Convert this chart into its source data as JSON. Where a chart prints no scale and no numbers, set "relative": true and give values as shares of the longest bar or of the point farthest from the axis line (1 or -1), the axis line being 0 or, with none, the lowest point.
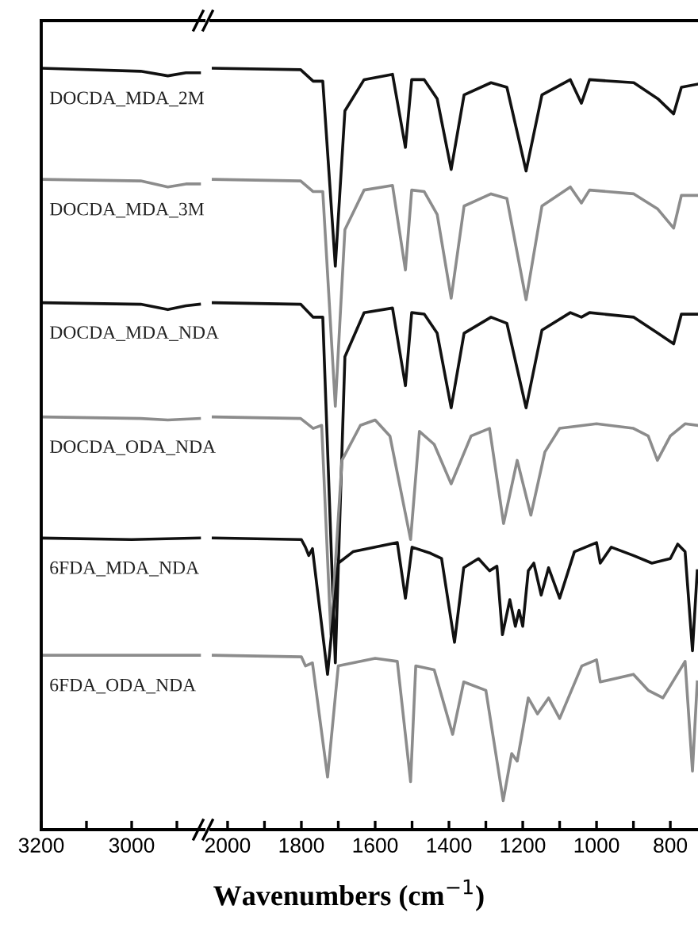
{
  "chart_data": [
    {
      "type": "line",
      "relative": true,
      "xlim": [
        3200,
        2840
      ],
      "xticks": [
        3200,
        {
          "value": 3100,
          "label": null
        },
        3000,
        {
          "value": 2900,
          "label": null
        }
      ],
      "tick_labels": "x",
      "series": [
        {
          "name": "DOCDA_MDA_2M",
          "color": "#111111",
          "x": [
            3200,
            2980,
            2920,
            2880,
            2850
          ],
          "values": [
            1.0,
            0.996,
            0.99,
            0.994,
            0.994
          ]
        },
        {
          "name": "DOCDA_MDA_3M",
          "color": "#8c8c8c",
          "x": [
            3200,
            2980,
            2920,
            2880,
            2850
          ],
          "values": [
            0.854,
            0.852,
            0.844,
            0.848,
            0.848
          ]
        },
        {
          "name": "DOCDA_MDA_NDA",
          "color": "#111111",
          "x": [
            3200,
            2980,
            2920,
            2880,
            2850
          ],
          "values": [
            0.692,
            0.69,
            0.683,
            0.688,
            0.69
          ]
        },
        {
          "name": "DOCDA_ODA_NDA",
          "color": "#8c8c8c",
          "x": [
            3200,
            2980,
            2920,
            2850
          ],
          "values": [
            0.542,
            0.54,
            0.538,
            0.54
          ]
        },
        {
          "name": "6FDA_MDA_NDA",
          "color": "#111111",
          "x": [
            3200,
            3000,
            2850
          ],
          "values": [
            0.383,
            0.381,
            0.383
          ]
        },
        {
          "name": "6FDA_ODA_NDA",
          "color": "#8c8c8c",
          "x": [
            3200,
            2850
          ],
          "values": [
            0.229,
            0.229
          ]
        }
      ]
    },
    {
      "type": "line",
      "relative": true,
      "xlim": [
        2045,
        725
      ],
      "xticks": [
        2000,
        {
          "value": 1900,
          "label": null
        },
        1800,
        {
          "value": 1700,
          "label": null
        },
        1600,
        {
          "value": 1500,
          "label": null
        },
        1400,
        {
          "value": 1300,
          "label": null
        },
        1200,
        {
          "value": 1100,
          "label": null
        },
        1000,
        {
          "value": 900,
          "label": null
        },
        800
      ],
      "tick_labels": "x",
      "xlabel": "Wavenumbers (cm$^{−1}$)",
      "series": [
        {
          "color": "#111111",
          "x": [
            2039,
            1802,
            1768,
            1742,
            1708,
            1682,
            1630,
            1553,
            1518,
            1501,
            1467,
            1432,
            1394,
            1359,
            1286,
            1243,
            1191,
            1148,
            1071,
            1041,
            1019,
            899,
            834,
            791,
            770,
            727
          ],
          "values": [
            1.0,
            0.998,
            0.983,
            0.983,
            0.74,
            0.944,
            0.985,
            0.992,
            0.896,
            0.985,
            0.985,
            0.96,
            0.867,
            0.965,
            0.981,
            0.975,
            0.865,
            0.965,
            0.985,
            0.954,
            0.985,
            0.981,
            0.96,
            0.94,
            0.975,
            0.979
          ]
        },
        {
          "color": "#8c8c8c",
          "x": [
            2039,
            1802,
            1768,
            1742,
            1708,
            1682,
            1630,
            1553,
            1518,
            1501,
            1467,
            1432,
            1394,
            1359,
            1286,
            1243,
            1191,
            1148,
            1071,
            1041,
            1019,
            899,
            834,
            791,
            770,
            727
          ],
          "values": [
            0.854,
            0.852,
            0.838,
            0.838,
            0.556,
            0.788,
            0.84,
            0.846,
            0.735,
            0.84,
            0.838,
            0.808,
            0.698,
            0.819,
            0.835,
            0.829,
            0.696,
            0.819,
            0.844,
            0.823,
            0.84,
            0.835,
            0.815,
            0.79,
            0.833,
            0.833
          ]
        },
        {
          "color": "#111111",
          "x": [
            2039,
            1802,
            1768,
            1742,
            1708,
            1682,
            1630,
            1553,
            1518,
            1501,
            1467,
            1432,
            1394,
            1359,
            1286,
            1243,
            1191,
            1148,
            1071,
            1041,
            1019,
            899,
            834,
            791,
            770,
            727
          ],
          "values": [
            0.692,
            0.69,
            0.673,
            0.673,
            0.219,
            0.621,
            0.679,
            0.685,
            0.583,
            0.679,
            0.677,
            0.652,
            0.554,
            0.652,
            0.673,
            0.665,
            0.554,
            0.656,
            0.679,
            0.673,
            0.679,
            0.673,
            0.652,
            0.638,
            0.677,
            0.677
          ]
        },
        {
          "color": "#8c8c8c",
          "x": [
            2039,
            1802,
            1768,
            1745,
            1720,
            1690,
            1640,
            1600,
            1560,
            1504,
            1480,
            1440,
            1394,
            1340,
            1290,
            1252,
            1215,
            1178,
            1140,
            1100,
            1000,
            900,
            860,
            835,
            800,
            760,
            727
          ],
          "values": [
            0.542,
            0.54,
            0.527,
            0.531,
            0.256,
            0.485,
            0.531,
            0.538,
            0.517,
            0.381,
            0.523,
            0.506,
            0.454,
            0.517,
            0.527,
            0.402,
            0.485,
            0.413,
            0.496,
            0.527,
            0.533,
            0.527,
            0.517,
            0.485,
            0.517,
            0.533,
            0.531
          ]
        },
        {
          "color": "#111111",
          "x": [
            2039,
            1800,
            1789,
            1780,
            1770,
            1729,
            1700,
            1660,
            1600,
            1540,
            1518,
            1500,
            1450,
            1420,
            1385,
            1360,
            1320,
            1290,
            1270,
            1255,
            1235,
            1220,
            1210,
            1200,
            1185,
            1170,
            1150,
            1130,
            1100,
            1060,
            1000,
            990,
            960,
            900,
            850,
            800,
            780,
            760,
            740,
            727
          ],
          "values": [
            0.383,
            0.381,
            0.371,
            0.36,
            0.369,
            0.204,
            0.35,
            0.365,
            0.371,
            0.377,
            0.304,
            0.371,
            0.363,
            0.356,
            0.246,
            0.344,
            0.356,
            0.34,
            0.346,
            0.256,
            0.302,
            0.267,
            0.288,
            0.267,
            0.34,
            0.35,
            0.308,
            0.344,
            0.304,
            0.365,
            0.377,
            0.35,
            0.371,
            0.36,
            0.35,
            0.356,
            0.375,
            0.365,
            0.235,
            0.34
          ]
        },
        {
          "color": "#8c8c8c",
          "x": [
            2039,
            1800,
            1789,
            1770,
            1729,
            1700,
            1600,
            1540,
            1504,
            1490,
            1440,
            1390,
            1360,
            1300,
            1253,
            1230,
            1215,
            1200,
            1185,
            1160,
            1130,
            1100,
            1040,
            1000,
            990,
            900,
            860,
            820,
            760,
            740,
            727
          ],
          "values": [
            0.229,
            0.227,
            0.215,
            0.219,
            0.069,
            0.215,
            0.225,
            0.221,
            0.063,
            0.215,
            0.21,
            0.125,
            0.194,
            0.183,
            0.038,
            0.1,
            0.09,
            0.131,
            0.173,
            0.152,
            0.173,
            0.146,
            0.215,
            0.223,
            0.194,
            0.204,
            0.183,
            0.173,
            0.221,
            0.077,
            0.194
          ]
        }
      ]
    }
  ]
}
